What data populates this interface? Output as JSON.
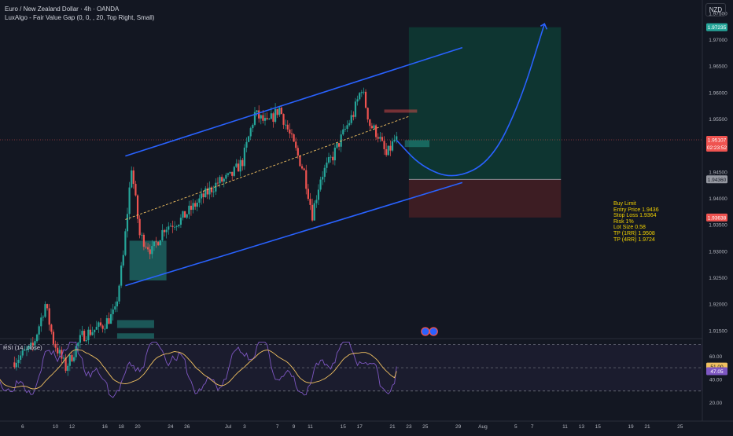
{
  "header": {
    "title": "Euro / New Zealand Dollar · 4h · OANDA",
    "indicator": "LuxAlgo - Fair Value Gap (0, 0, , 20, Top Right, Small)"
  },
  "currency_button": "NZD",
  "price_labels": {
    "take_profit": "1.97235",
    "current_price": "1.95107",
    "countdown": "02:23:52",
    "entry": "1.94360",
    "stop": "1.93638"
  },
  "trade_info": {
    "lines": [
      "Buy Limit",
      "Entry Price 1.9436",
      "Stop Loss 1.9364",
      "Risk 1%",
      "Lot Size 0.58",
      "TP (1RR) 1.9508",
      "TP (4RR) 1.9724"
    ]
  },
  "rsi": {
    "legend": "RSI (14, close)",
    "value_label": "51.00",
    "ma_label": "47.05"
  },
  "colors": {
    "background": "#131722",
    "bullish": "#26a69a",
    "bearish": "#ef5350",
    "channel": "#2962ff",
    "projection": "#2962ff",
    "target_zone": "#0e3b34",
    "stop_zone": "#3f1d24",
    "rsi_line": "#7e57c2",
    "rsi_ma": "#f0c060",
    "info_text": "#f0d000"
  },
  "chart_data": {
    "type": "candlestick",
    "title": "Euro / New Zealand Dollar · 4h · OANDA",
    "ylim": [
      1.9135,
      1.9775
    ],
    "y_ticks": [
      "1.97500",
      "1.97000",
      "1.96500",
      "1.96000",
      "1.95500",
      "1.95000",
      "1.94500",
      "1.94000",
      "1.93500",
      "1.93000",
      "1.92500",
      "1.92000",
      "1.91500"
    ],
    "x_ticks": [
      "6",
      "10",
      "12",
      "16",
      "18",
      "20",
      "24",
      "26",
      "Jul",
      "3",
      "7",
      "9",
      "11",
      "15",
      "17",
      "21",
      "23",
      "25",
      "29",
      "Aug",
      "5",
      "7",
      "11",
      "13",
      "15",
      "19",
      "21",
      "25"
    ],
    "x_tick_days": [
      -25,
      -21,
      -19,
      -15,
      -13,
      -11,
      -7,
      -5,
      0,
      2,
      6,
      8,
      10,
      14,
      16,
      20,
      22,
      24,
      28,
      31,
      35,
      37,
      41,
      43,
      45,
      49,
      51,
      55
    ],
    "candle_days_range": [
      -26,
      20.5
    ],
    "candle_path": [
      {
        "d": -26.0,
        "p": 1.909
      },
      {
        "d": -23.5,
        "p": 1.912
      },
      {
        "d": -22.0,
        "p": 1.92
      },
      {
        "d": -21.0,
        "p": 1.913
      },
      {
        "d": -19.5,
        "p": 1.908
      },
      {
        "d": -17.5,
        "p": 1.914
      },
      {
        "d": -15.0,
        "p": 1.916
      },
      {
        "d": -13.5,
        "p": 1.9185
      },
      {
        "d": -12.5,
        "p": 1.929
      },
      {
        "d": -11.5,
        "p": 1.946
      },
      {
        "d": -10.5,
        "p": 1.933
      },
      {
        "d": -9.0,
        "p": 1.93
      },
      {
        "d": -7.5,
        "p": 1.9345
      },
      {
        "d": -5.5,
        "p": 1.936
      },
      {
        "d": -3.0,
        "p": 1.94
      },
      {
        "d": -1.0,
        "p": 1.943
      },
      {
        "d": 0.5,
        "p": 1.944
      },
      {
        "d": 2.0,
        "p": 1.947
      },
      {
        "d": 3.5,
        "p": 1.956
      },
      {
        "d": 5.0,
        "p": 1.954
      },
      {
        "d": 6.5,
        "p": 1.957
      },
      {
        "d": 8.0,
        "p": 1.951
      },
      {
        "d": 9.5,
        "p": 1.945
      },
      {
        "d": 10.5,
        "p": 1.937
      },
      {
        "d": 11.5,
        "p": 1.944
      },
      {
        "d": 13.0,
        "p": 1.948
      },
      {
        "d": 14.5,
        "p": 1.953
      },
      {
        "d": 15.5,
        "p": 1.956
      },
      {
        "d": 16.5,
        "p": 1.961
      },
      {
        "d": 17.5,
        "p": 1.954
      },
      {
        "d": 18.5,
        "p": 1.952
      },
      {
        "d": 19.5,
        "p": 1.948
      },
      {
        "d": 20.5,
        "p": 1.951
      }
    ],
    "channel_upper": [
      {
        "d": -12.5,
        "p": 1.948
      },
      {
        "d": 28.5,
        "p": 1.9685
      }
    ],
    "channel_lower": [
      {
        "d": -12.5,
        "p": 1.9235
      },
      {
        "d": 28.5,
        "p": 1.943
      }
    ],
    "channel_mid": [
      {
        "d": -12.5,
        "p": 1.936
      },
      {
        "d": 22.0,
        "p": 1.9555
      }
    ],
    "projection": [
      {
        "d": 20.5,
        "p": 1.951
      },
      {
        "d": 23.5,
        "p": 1.946
      },
      {
        "d": 27.5,
        "p": 1.9436
      },
      {
        "d": 32.0,
        "p": 1.947
      },
      {
        "d": 35.5,
        "p": 1.958
      },
      {
        "d": 38.5,
        "p": 1.973
      }
    ],
    "position": {
      "start_day": 22.0,
      "end_day": 40.5,
      "take_profit": 1.97235,
      "entry": 1.9436,
      "stop": 1.93638
    },
    "current_price": 1.95107,
    "fvg_boxes": [
      {
        "d0": 21.5,
        "d1": 24.5,
        "top": 1.951,
        "bottom": 1.9497,
        "kind": "bull"
      },
      {
        "d0": 19.0,
        "d1": 23.0,
        "top": 1.9568,
        "bottom": 1.9562,
        "kind": "bear"
      },
      {
        "d0": -12.0,
        "d1": -7.5,
        "top": 1.932,
        "bottom": 1.9245,
        "kind": "bull"
      },
      {
        "d0": -13.5,
        "d1": -9.0,
        "top": 1.917,
        "bottom": 1.9155,
        "kind": "bull"
      },
      {
        "d0": -13.5,
        "d1": -9.0,
        "top": 1.9145,
        "bottom": 1.9135,
        "kind": "bull"
      }
    ],
    "event_markers_days": [
      24.0,
      25.0
    ],
    "rsi": {
      "ylim": [
        15,
        75
      ],
      "y_ticks": [
        "60.00",
        "40.00",
        "20.00"
      ],
      "levels": [
        70,
        50,
        30
      ],
      "value": 51.0,
      "ma_value": 47.05
    }
  }
}
